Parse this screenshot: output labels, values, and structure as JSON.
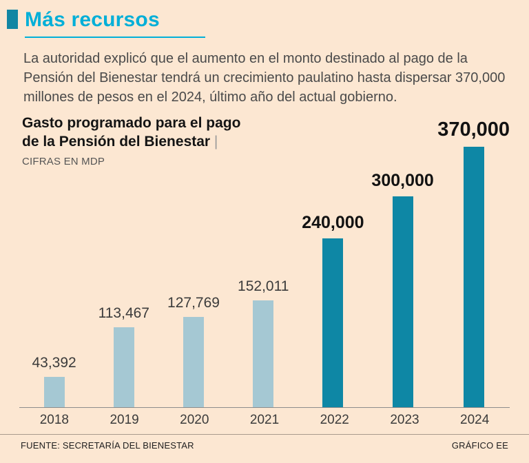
{
  "header": {
    "title": "Más recursos"
  },
  "intro": {
    "text": "La autoridad explicó que el aumento en el monto destinado al pago de la Pensión del Bienestar tendrá un crecimiento paulatino hasta dispersar 370,000 millones de pesos en el 2024, último año del actual gobierno."
  },
  "chart_data": {
    "type": "bar",
    "title": "Gasto programado para el pago de la Pensión del Bienestar",
    "title_separator": " | ",
    "units_label": "CIFRAS EN MDP",
    "categories": [
      "2018",
      "2019",
      "2020",
      "2021",
      "2022",
      "2023",
      "2024"
    ],
    "values": [
      43392,
      113467,
      127769,
      152011,
      240000,
      300000,
      370000
    ],
    "value_labels": [
      "43,392",
      "113,467",
      "127,769",
      "152,011",
      "240,000",
      "300,000",
      "370,000"
    ],
    "emphasis": [
      false,
      false,
      false,
      false,
      true,
      true,
      true
    ],
    "label_sizes": [
      21,
      21,
      21,
      21,
      25,
      25,
      29
    ],
    "ylim": [
      0,
      370000
    ],
    "xlabel": "",
    "ylabel": "",
    "grid": false,
    "legend": "none",
    "colors": {
      "regular": "#a5c8d3",
      "emphasis": "#0e87a5"
    }
  },
  "footer": {
    "source": "FUENTE: SECRETARÍA DEL BIENESTAR",
    "credit": "GRÁFICO EE"
  }
}
